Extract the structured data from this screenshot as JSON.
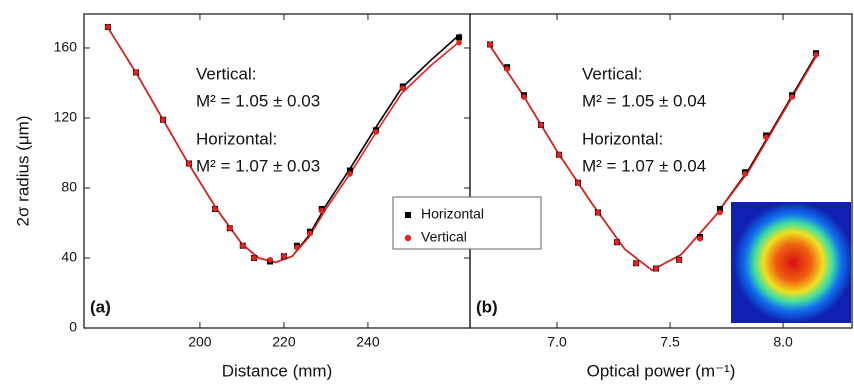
{
  "chart_data": [
    {
      "type": "scatter",
      "panel_label": "(a)",
      "x_label": "Distance (mm)",
      "y_label": "2σ radius (μm)",
      "xlim": [
        172.4,
        264.3
      ],
      "ylim": [
        0,
        179.4
      ],
      "xticks": [
        200,
        220,
        240
      ],
      "yticks": [
        0,
        40,
        80,
        120,
        160
      ],
      "annotations": [
        "Vertical:",
        "M² = 1.05 ± 0.03",
        "Horizontal:",
        "M² = 1.07 ± 0.03"
      ],
      "x": [
        178.1,
        184.8,
        191.2,
        197.4,
        203.6,
        207.1,
        210.2,
        212.9,
        216.7,
        220.0,
        223.1,
        226.2,
        229.0,
        235.7,
        241.9,
        248.3,
        261.7
      ],
      "series": [
        {
          "name": "Horizontal",
          "color": "#000000",
          "marker": "square",
          "values": [
            172,
            146,
            119,
            94,
            68,
            57,
            47,
            40,
            38,
            41,
            47,
            55,
            68,
            90,
            113,
            138,
            166
          ]
        },
        {
          "name": "Vertical",
          "color": "#e8201c",
          "marker": "circle",
          "values": [
            172,
            146,
            119,
            94,
            68,
            57,
            47,
            40,
            39,
            41,
            46,
            54,
            67,
            88,
            112,
            137,
            163
          ]
        }
      ],
      "fits": [
        {
          "color": "#000000",
          "x": [
            178,
            185,
            191,
            197,
            204,
            210,
            214,
            218,
            222,
            226,
            230,
            236,
            242,
            248,
            255,
            262
          ],
          "values": [
            172,
            145,
            120,
            95,
            68,
            48,
            40,
            37.5,
            41,
            53,
            70,
            92,
            115,
            137,
            153,
            168
          ]
        },
        {
          "color": "#e8201c",
          "x": [
            178,
            185,
            191,
            197,
            204,
            210,
            214,
            218,
            222,
            226,
            230,
            236,
            242,
            248,
            255,
            262
          ],
          "values": [
            172,
            145,
            120,
            95,
            68,
            48,
            40,
            37.5,
            41,
            52,
            68,
            89,
            112,
            134,
            150,
            164
          ]
        }
      ]
    },
    {
      "type": "scatter",
      "panel_label": "(b)",
      "x_label": "Optical power (m⁻¹)",
      "xlim": [
        6.615,
        8.305
      ],
      "ylim": [
        0,
        179.4
      ],
      "xticks": [
        {
          "value": 7,
          "label": "7.0"
        },
        7.5,
        {
          "value": 8,
          "label": "8.0"
        }
      ],
      "annotations": [
        "Vertical:",
        "M² = 1.05 ± 0.04",
        "Horizontal:",
        "M² = 1.07 ± 0.04"
      ],
      "x": [
        6.704,
        6.779,
        6.854,
        6.929,
        7.009,
        7.093,
        7.181,
        7.265,
        7.35,
        7.438,
        7.54,
        7.633,
        7.721,
        7.832,
        7.925,
        8.04,
        8.146
      ],
      "series": [
        {
          "color": "#000000",
          "marker": "square",
          "values": [
            162,
            149,
            133,
            116,
            99,
            83,
            66,
            49,
            37,
            34,
            39,
            52,
            68,
            89,
            110,
            133,
            157
          ]
        },
        {
          "color": "#e8201c",
          "marker": "circle",
          "values": [
            162,
            148,
            132,
            116,
            99,
            83,
            66,
            49,
            37,
            34,
            39,
            51,
            66,
            88,
            109,
            132,
            156
          ]
        }
      ],
      "fits": [
        {
          "color": "#000000",
          "x": [
            6.7,
            6.85,
            7.0,
            7.15,
            7.3,
            7.42,
            7.55,
            7.7,
            7.85,
            8.0,
            8.15
          ],
          "values": [
            162,
            133,
            101,
            72,
            45,
            33,
            42,
            64,
            91,
            124,
            157
          ]
        },
        {
          "color": "#e8201c",
          "x": [
            6.7,
            6.85,
            7.0,
            7.15,
            7.3,
            7.42,
            7.55,
            7.7,
            7.85,
            8.0,
            8.15
          ],
          "values": [
            162,
            133,
            101,
            72,
            45,
            33,
            42,
            64,
            90,
            123,
            156
          ]
        }
      ]
    }
  ]
}
